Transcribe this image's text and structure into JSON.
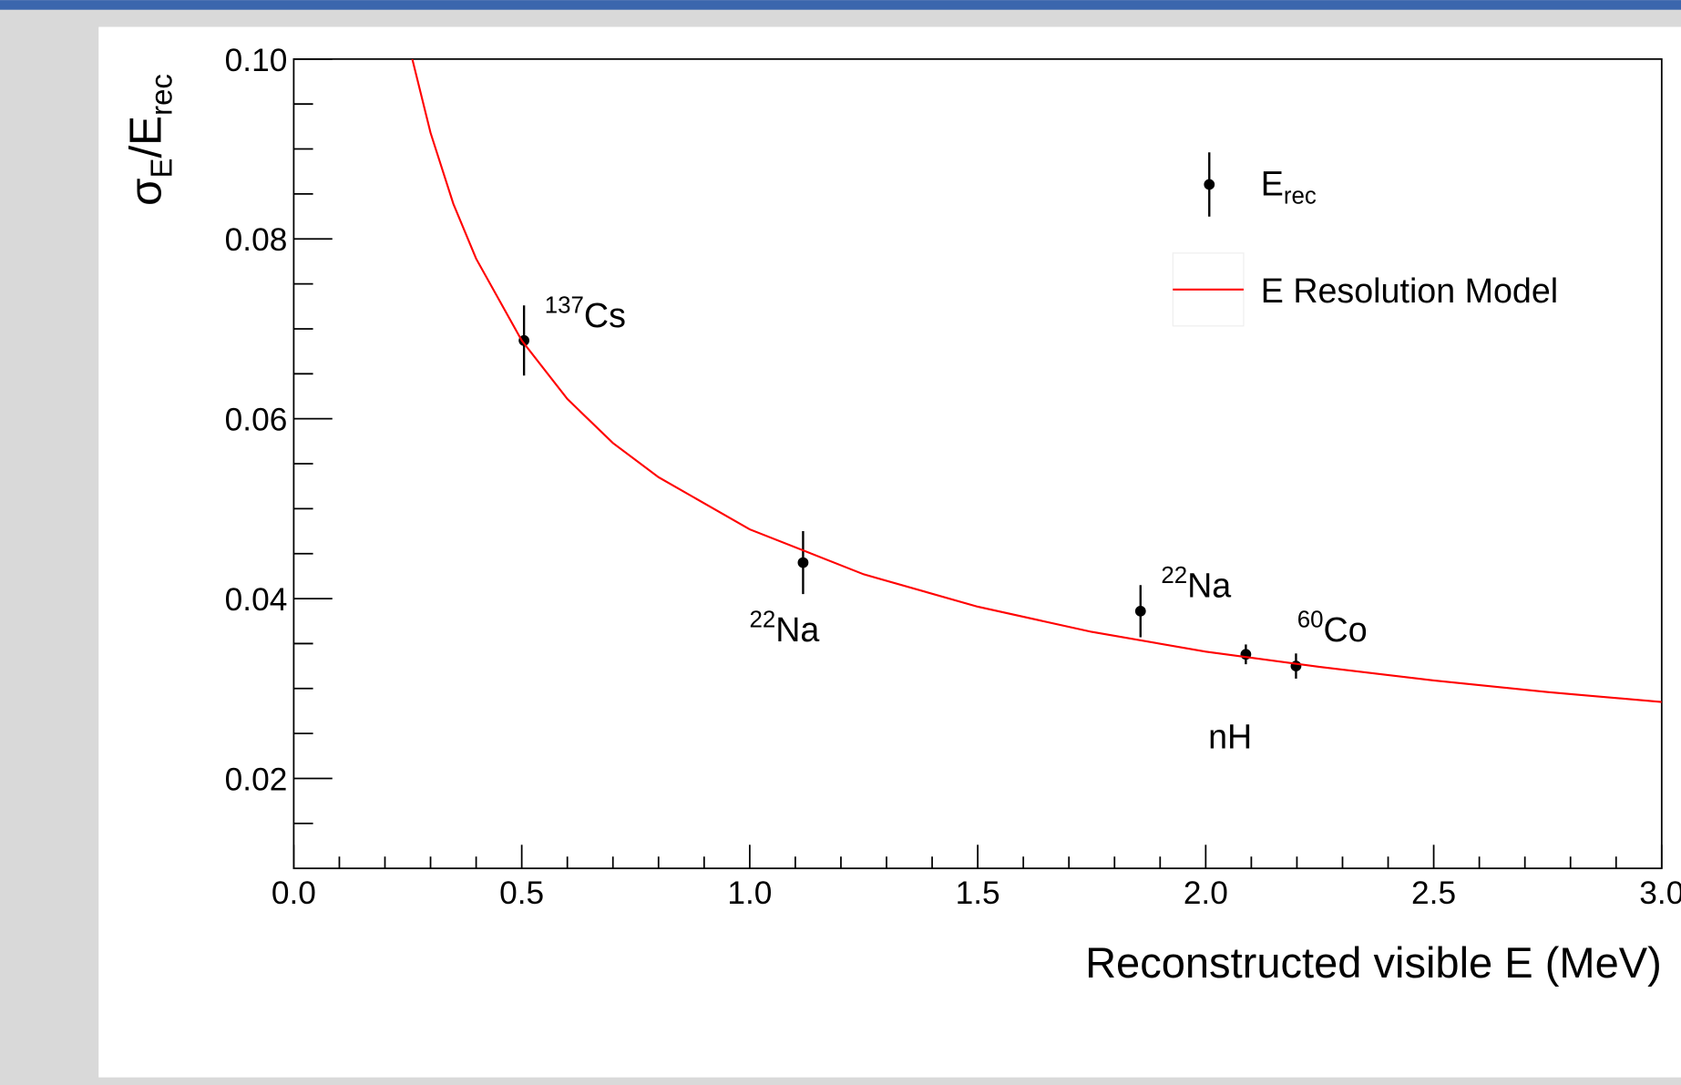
{
  "chart_data": {
    "type": "scatter",
    "x_label": "Reconstructed visible E (MeV)",
    "y_label": {
      "symbol": "σ",
      "symbol_sub": "E",
      "denominator": "/E",
      "denominator_sub": "rec"
    },
    "xlim": [
      0,
      3
    ],
    "ylim": [
      0.01,
      0.1
    ],
    "xticks": [
      {
        "value": 0,
        "label": "0.0"
      },
      0.5,
      {
        "value": 1,
        "label": "1.0"
      },
      1.5,
      {
        "value": 2,
        "label": "2.0"
      },
      2.5,
      {
        "value": 3,
        "label": "3.0"
      }
    ],
    "yticks": [
      0.02,
      0.04,
      0.06,
      0.08,
      {
        "value": 0.1,
        "label": "0.10"
      }
    ],
    "x_minor_ticks": [
      0.1,
      0.2,
      0.3,
      0.4,
      0.6,
      0.7,
      0.8,
      0.9,
      1.1,
      1.2,
      1.3,
      1.4,
      1.6,
      1.7,
      1.8,
      1.9,
      2.1,
      2.2,
      2.3,
      2.4,
      2.6,
      2.7,
      2.8,
      2.9
    ],
    "y_minor_ticks": [
      0.015,
      0.025,
      0.03,
      0.035,
      0.045,
      0.05,
      0.055,
      0.065,
      0.07,
      0.075,
      0.085,
      0.09,
      0.095
    ],
    "series": [
      {
        "name": "E",
        "name_sub": "rec",
        "color": "#000000",
        "kind": "points",
        "x": [
          0.505,
          1.117,
          1.857,
          2.088,
          2.198
        ],
        "values": [
          0.0687,
          0.044,
          0.0386,
          0.0338,
          0.0325
        ],
        "errors": [
          0.0039,
          0.0035,
          0.0029,
          0.0011,
          0.0014
        ]
      },
      {
        "name": "E Resolution Model",
        "color": "#ff0000",
        "kind": "line",
        "x": [
          0.26,
          0.3,
          0.35,
          0.4,
          0.5,
          0.6,
          0.7,
          0.8,
          1.0,
          1.25,
          1.5,
          1.75,
          2.0,
          2.25,
          2.5,
          2.75,
          3.0
        ],
        "values": [
          0.1,
          0.0918,
          0.0839,
          0.0778,
          0.0687,
          0.0622,
          0.0573,
          0.0535,
          0.0477,
          0.0427,
          0.0391,
          0.0363,
          0.0341,
          0.0324,
          0.0309,
          0.0296,
          0.0285
        ]
      }
    ],
    "annotations": [
      {
        "sup": "137",
        "text": "Cs"
      },
      {
        "sup": "22",
        "text": "Na"
      },
      {
        "sup": "22",
        "text": "Na"
      },
      {
        "sup": "60",
        "text": "Co"
      },
      {
        "text": "nH"
      }
    ]
  }
}
